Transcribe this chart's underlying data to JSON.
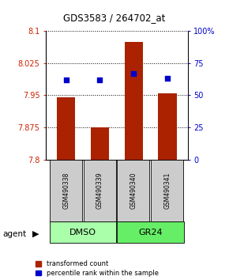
{
  "title": "GDS3583 / 264702_at",
  "samples": [
    "GSM490338",
    "GSM490339",
    "GSM490340",
    "GSM490341"
  ],
  "transformed_counts": [
    7.945,
    7.875,
    8.075,
    7.955
  ],
  "percentile_ranks": [
    62,
    62,
    67,
    63
  ],
  "ylim_left": [
    7.8,
    8.1
  ],
  "ylim_right": [
    0,
    100
  ],
  "yticks_left": [
    7.8,
    7.875,
    7.95,
    8.025,
    8.1
  ],
  "yticks_right": [
    0,
    25,
    50,
    75,
    100
  ],
  "ytick_labels_left": [
    "7.8",
    "7.875",
    "7.95",
    "8.025",
    "8.1"
  ],
  "ytick_labels_right": [
    "0",
    "25",
    "50",
    "75",
    "100%"
  ],
  "bar_color": "#AA2200",
  "dot_color": "#0000CC",
  "sample_bg": "#CCCCCC",
  "left_axis_color": "#CC2200",
  "right_axis_color": "#0000CC",
  "legend_labels": [
    "transformed count",
    "percentile rank within the sample"
  ],
  "agent_label": "agent",
  "group_info": [
    {
      "label": "DMSO",
      "start": 0,
      "end": 1,
      "color": "#AAFFAA"
    },
    {
      "label": "GR24",
      "start": 2,
      "end": 3,
      "color": "#66EE66"
    }
  ]
}
